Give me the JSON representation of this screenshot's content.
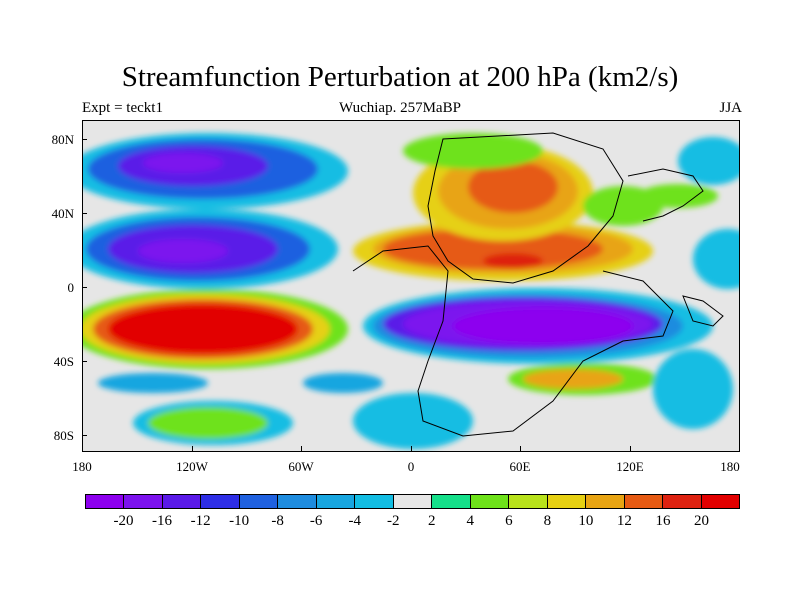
{
  "title": "Streamfunction Perturbation at 200 hPa (km2/s)",
  "left_label": "Expt = teckt1",
  "center_label": "Wuchiap. 257MaBP",
  "right_label": "JJA",
  "y_ticks": [
    "80N",
    "40N",
    "0",
    "40S",
    "80S"
  ],
  "x_ticks": [
    "180",
    "120W",
    "60W",
    "0",
    "60E",
    "120E",
    "180"
  ],
  "colorbar": {
    "labels": [
      "-20",
      "-16",
      "-12",
      "-10",
      "-8",
      "-6",
      "-4",
      "-2",
      "2",
      "4",
      "6",
      "8",
      "10",
      "12",
      "16",
      "20"
    ],
    "colors": [
      "#8d00ef",
      "#7c12ee",
      "#5a1ae8",
      "#2e2ee6",
      "#1f61e0",
      "#1e8cdf",
      "#18a6e0",
      "#12bde3",
      "#e6e6e6",
      "#15e08a",
      "#6ee21a",
      "#b8e21b",
      "#e6d012",
      "#e8a412",
      "#e65a12",
      "#de2210",
      "#e20000"
    ]
  },
  "chart_data": {
    "type": "heatmap",
    "title": "Streamfunction Perturbation at 200 hPa (km2/s)",
    "x_range": [
      -180,
      180
    ],
    "y_range": [
      -90,
      90
    ],
    "x_tick_values": [
      -180,
      -120,
      -60,
      0,
      60,
      120,
      180
    ],
    "y_tick_values": [
      80,
      40,
      0,
      -40,
      -80
    ],
    "contour_levels": [
      -20,
      -16,
      -12,
      -10,
      -8,
      -6,
      -4,
      -2,
      2,
      4,
      6,
      8,
      10,
      12,
      16,
      20
    ],
    "features": [
      {
        "name": "high-lat negative center",
        "lon": -120,
        "lat": 62,
        "value": -16
      },
      {
        "name": "subtropical negative band",
        "lon": -120,
        "lat": 25,
        "value": -12
      },
      {
        "name": "southern positive center",
        "lon": -105,
        "lat": -22,
        "value": 20
      },
      {
        "name": "southern weak positive",
        "lon": -105,
        "lat": -70,
        "value": 6
      },
      {
        "name": "eastern negative center",
        "lon": 70,
        "lat": -20,
        "value": -20
      },
      {
        "name": "eastern positive center",
        "lon": 60,
        "lat": 15,
        "value": 16
      },
      {
        "name": "northern positive center",
        "lon": 55,
        "lat": 50,
        "value": 12
      },
      {
        "name": "southern positive patch",
        "lon": 90,
        "lat": -50,
        "value": 10
      }
    ]
  }
}
